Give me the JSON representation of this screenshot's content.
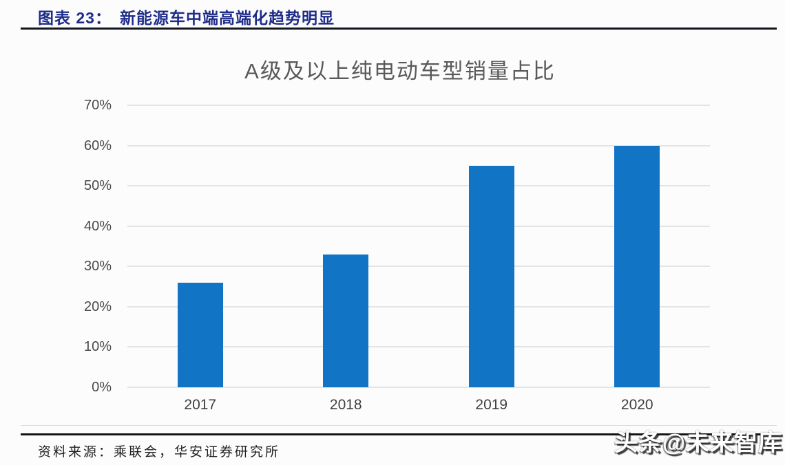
{
  "figure_header": {
    "label": "图表 23：",
    "title": "新能源车中端高端化趋势明显",
    "color": "#1f2d8a"
  },
  "chart_data": {
    "type": "bar",
    "title": "A级及以上纯电动车型销量占比",
    "categories": [
      "2017",
      "2018",
      "2019",
      "2020"
    ],
    "values": [
      26,
      33,
      55,
      60
    ],
    "unit": "%",
    "xlabel": "",
    "ylabel": "",
    "ylim": [
      0,
      70
    ],
    "ytick_step": 10,
    "ytick_labels": [
      "0%",
      "10%",
      "20%",
      "30%",
      "40%",
      "50%",
      "60%",
      "70%"
    ],
    "grid": true,
    "legend": "none",
    "bar_color": "#1274c5"
  },
  "source": {
    "label": "资料来源：",
    "text": "乘联会，华安证券研究所"
  },
  "watermark": {
    "text": "头条@未来智库"
  },
  "colors": {
    "header_blue": "#1f2d8a",
    "title_gray": "#595959",
    "axis_gray": "#4a4a4a",
    "gridline_gray": "#c9cbd0",
    "rule_dark": "#141414",
    "background": "#fcfcfc"
  }
}
